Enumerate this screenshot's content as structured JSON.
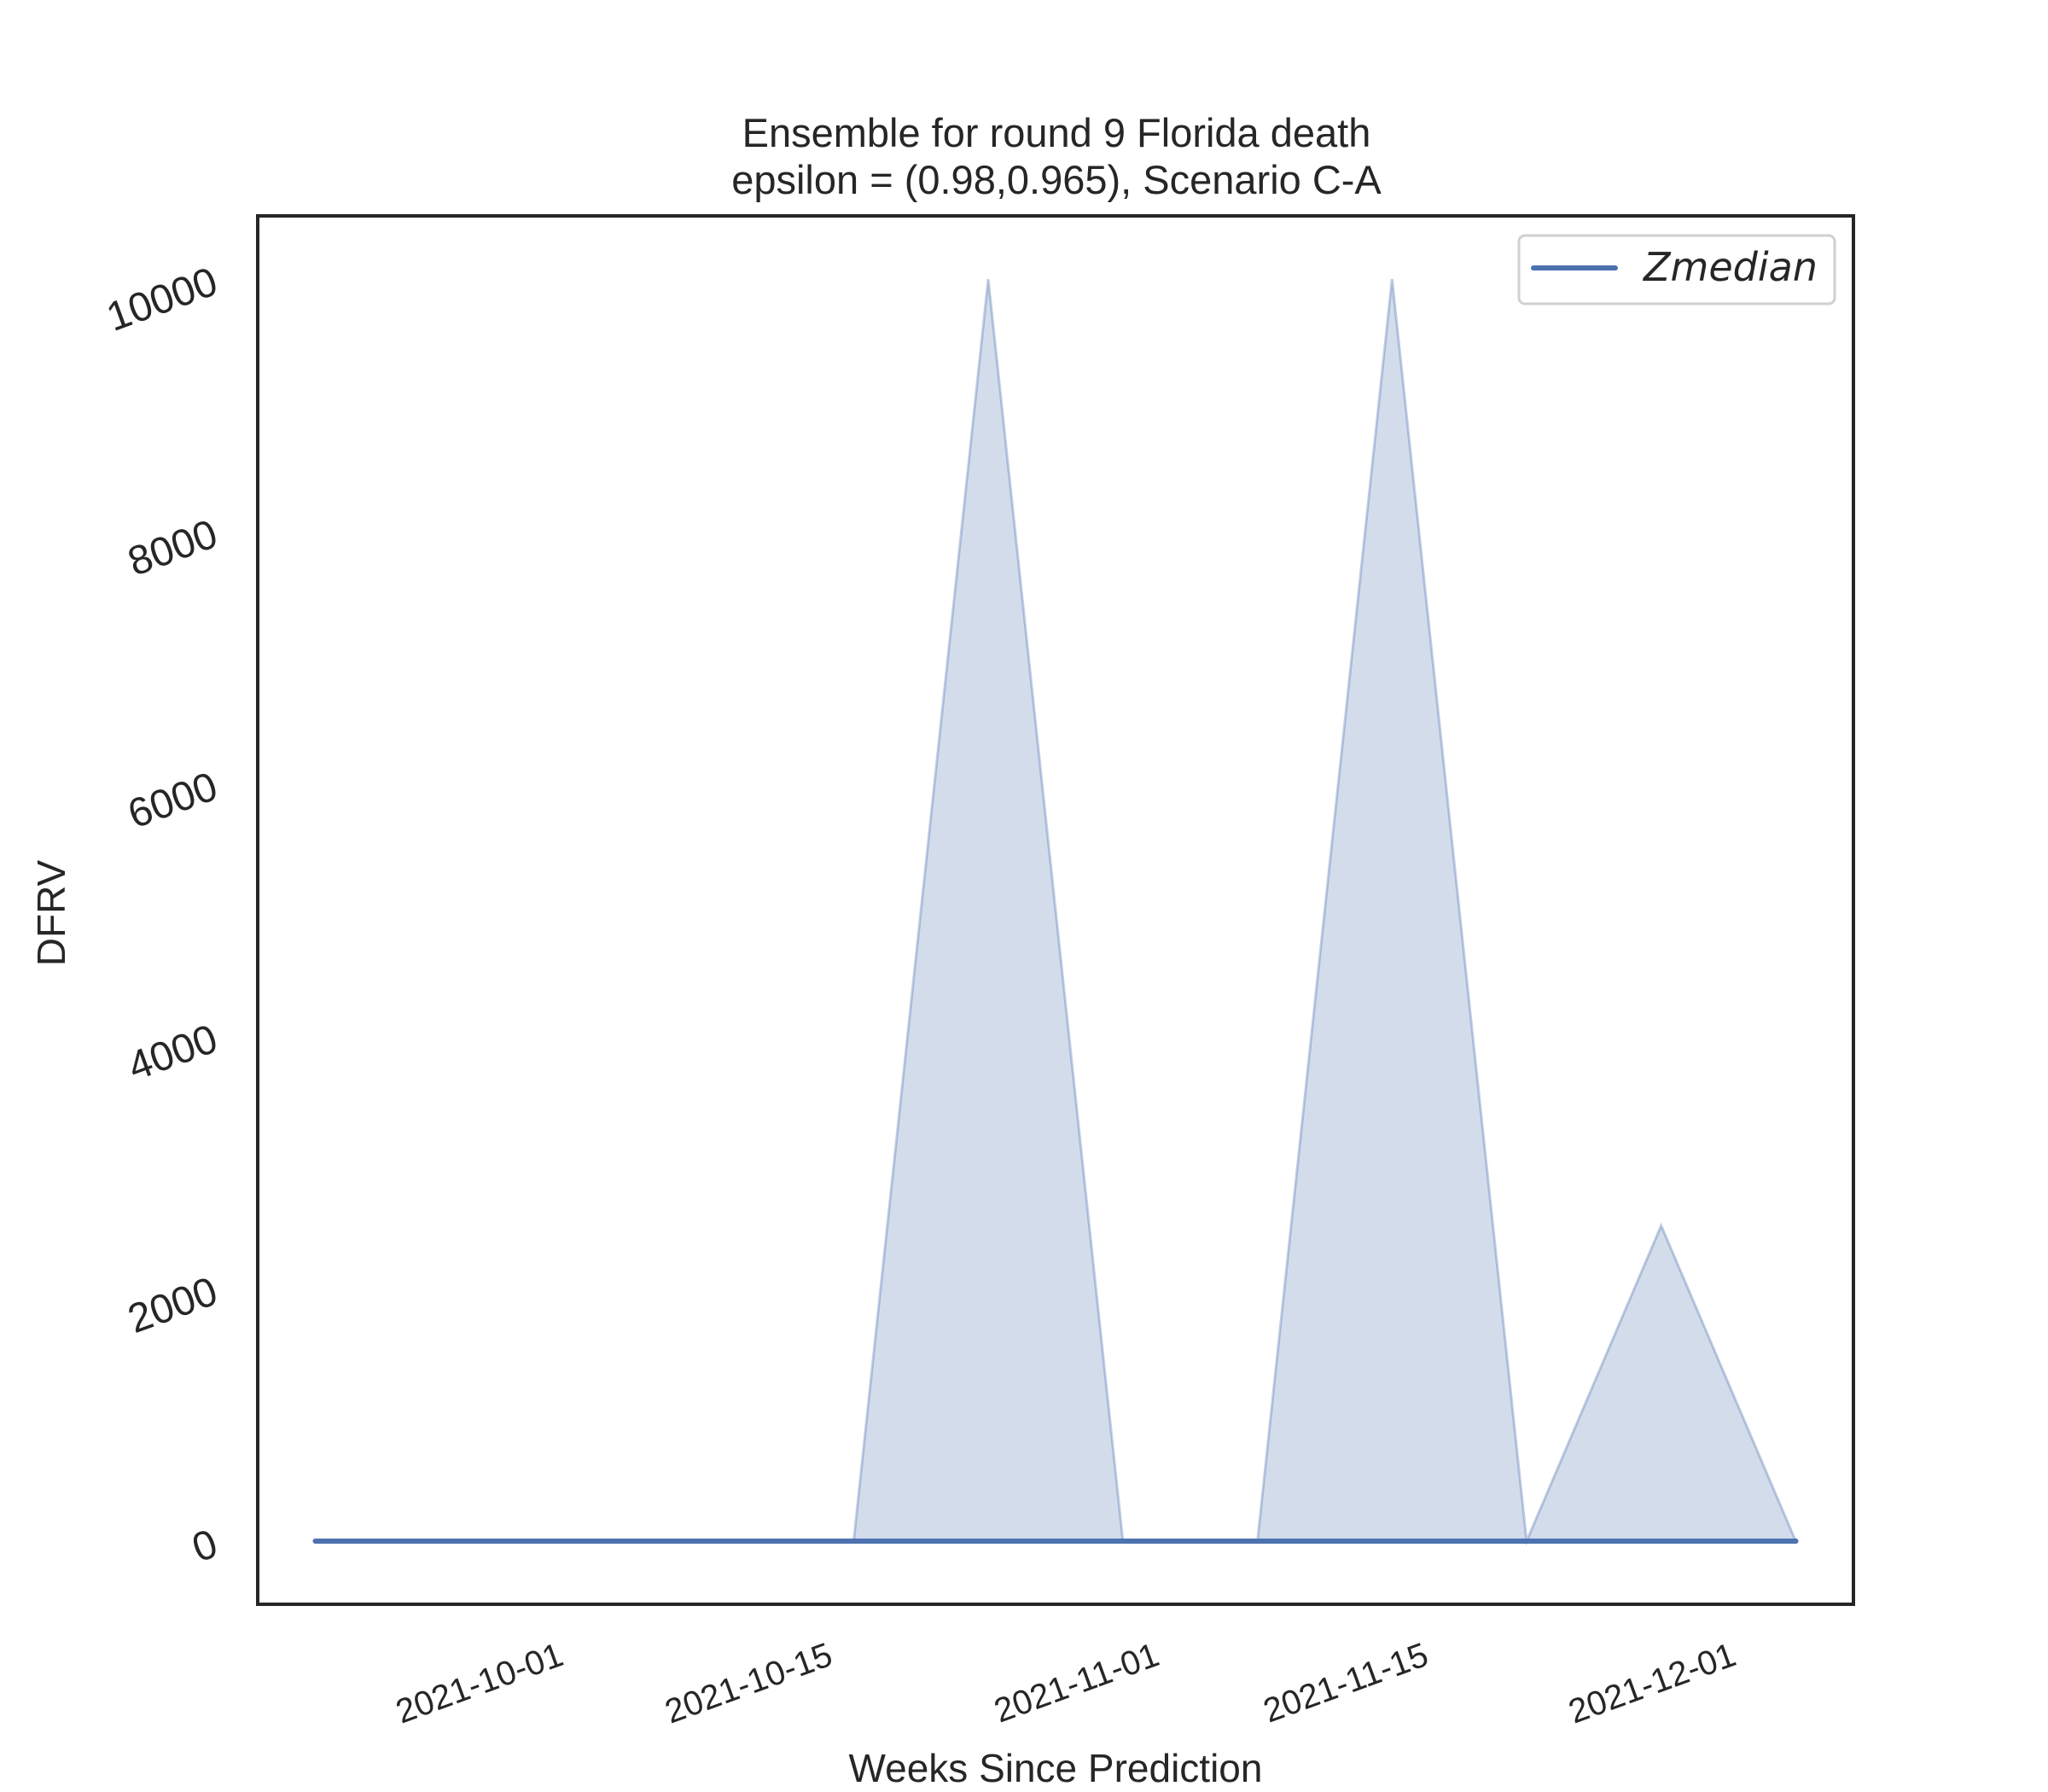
{
  "chart_data": {
    "type": "area",
    "title": "Ensemble for round 9 Florida  death",
    "subtitle": "epsilon = (0.98,0.965), Scenario C-A",
    "xlabel": "Weeks Since Prediction",
    "ylabel": "DFRV",
    "x": [
      "2021-09-18",
      "2021-09-25",
      "2021-10-02",
      "2021-10-09",
      "2021-10-16",
      "2021-10-23",
      "2021-10-30",
      "2021-11-06",
      "2021-11-13",
      "2021-11-20",
      "2021-11-27",
      "2021-12-04"
    ],
    "xlim": [
      "2021-09-15",
      "2021-12-07"
    ],
    "xticks": [
      "2021-10-01",
      "2021-10-15",
      "2021-11-01",
      "2021-11-15",
      "2021-12-01"
    ],
    "ylim": [
      -500,
      10500
    ],
    "yticks": [
      0,
      2000,
      4000,
      6000,
      8000,
      10000
    ],
    "series": [
      {
        "name": "Zmedian",
        "type": "line",
        "color": "#4c72b0",
        "values": [
          0,
          0,
          0,
          0,
          0,
          0,
          0,
          0,
          0,
          0,
          0,
          0
        ]
      }
    ],
    "band": {
      "color": "#4c72b0",
      "opacity": 0.25,
      "lower": [
        0,
        0,
        0,
        0,
        0,
        0,
        0,
        0,
        0,
        0,
        0,
        0
      ],
      "upper": [
        0,
        0,
        0,
        0,
        0,
        10000,
        0,
        0,
        10000,
        0,
        2500,
        0
      ]
    },
    "legend": {
      "position": "top-right"
    },
    "grid": false
  }
}
